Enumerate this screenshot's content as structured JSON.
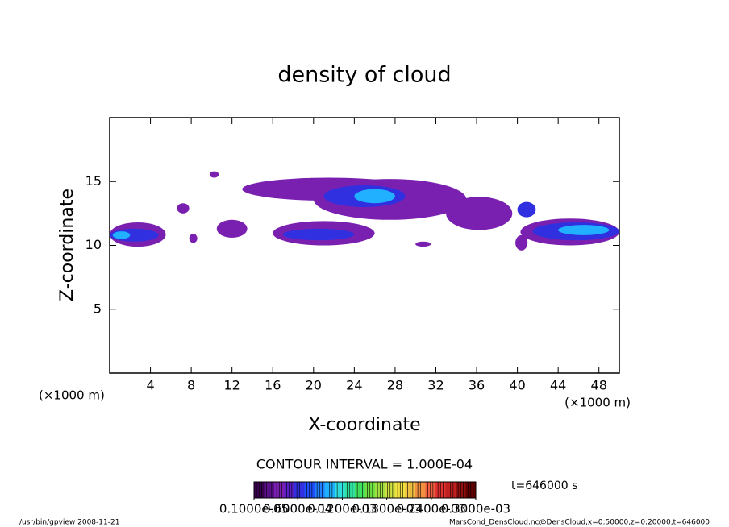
{
  "chart_data": {
    "type": "contour",
    "title": "density of cloud",
    "xlabel": "X-coordinate",
    "ylabel": "Z-coordinate",
    "xunit": "(×1000 m)",
    "xlim": [
      0,
      50
    ],
    "ylim": [
      0,
      20
    ],
    "xticks": [
      4,
      8,
      12,
      16,
      20,
      24,
      28,
      32,
      36,
      40,
      44,
      48
    ],
    "yticks": [
      5,
      10,
      15
    ],
    "contour_interval": "CONTOUR INTERVAL = 1.000E-04",
    "time_label": "t=646000 s",
    "footer_left": "/usr/bin/gpview  2008-11-21",
    "footer_right": "MarsCond_DensCloud.nc@DensCloud,x=0:50000,z=0:20000,t=646000",
    "colorbar": {
      "lim": [
        1e-06,
        0.0003
      ],
      "ticks": [
        {
          "value": 1e-06,
          "label": "0.1000e-05"
        },
        {
          "value": 6e-05,
          "label": "0.6000e-04"
        },
        {
          "value": 0.00012,
          "label": "0.1200e-03"
        },
        {
          "value": 0.00018,
          "label": "0.1800e-03"
        },
        {
          "value": 0.00024,
          "label": "0.2400e-03"
        },
        {
          "value": 0.0003,
          "label": "0.3000e-03"
        }
      ],
      "colors": [
        "#3a0050",
        "#5a108a",
        "#7a20b0",
        "#5a20c8",
        "#3030e0",
        "#2050ff",
        "#2080ff",
        "#20b0ff",
        "#30e0e0",
        "#30e0a0",
        "#40e060",
        "#70e040",
        "#a0e040",
        "#d0e040",
        "#f0e040",
        "#f0c040",
        "#f09040",
        "#f06040",
        "#e03030",
        "#c02020",
        "#901010",
        "#600000"
      ]
    },
    "patches": [
      {
        "x": [
          0,
          5.5
        ],
        "z": [
          9.9,
          11.8
        ],
        "value": 3e-05
      },
      {
        "x": [
          0,
          4.8
        ],
        "z": [
          10.3,
          11.3
        ],
        "value": 6.5e-05
      },
      {
        "x": [
          0.3,
          2
        ],
        "z": [
          10.5,
          11.1
        ],
        "value": 0.0001
      },
      {
        "x": [
          6.6,
          7.8
        ],
        "z": [
          12.5,
          13.3
        ],
        "value": 3e-05
      },
      {
        "x": [
          7.8,
          8.6
        ],
        "z": [
          10.2,
          10.9
        ],
        "value": 3e-05
      },
      {
        "x": [
          9.8,
          10.7
        ],
        "z": [
          15.3,
          15.8
        ],
        "value": 3e-05
      },
      {
        "x": [
          10.5,
          13.5
        ],
        "z": [
          10.6,
          12
        ],
        "value": 3e-05
      },
      {
        "x": [
          16,
          26
        ],
        "z": [
          10,
          11.9
        ],
        "value": 3e-05
      },
      {
        "x": [
          17,
          24
        ],
        "z": [
          10.4,
          11.3
        ],
        "value": 6.5e-05
      },
      {
        "x": [
          13,
          30
        ],
        "z": [
          13.5,
          15.3
        ],
        "value": 3e-05
      },
      {
        "x": [
          20,
          35
        ],
        "z": [
          12,
          15.2
        ],
        "value": 3e-05
      },
      {
        "x": [
          21,
          29
        ],
        "z": [
          13,
          14.7
        ],
        "value": 6.5e-05
      },
      {
        "x": [
          24,
          28
        ],
        "z": [
          13.3,
          14.4
        ],
        "value": 0.0001
      },
      {
        "x": [
          30,
          31.5
        ],
        "z": [
          9.9,
          10.3
        ],
        "value": 3e-05
      },
      {
        "x": [
          33,
          39.5
        ],
        "z": [
          11.2,
          13.8
        ],
        "value": 3e-05
      },
      {
        "x": [
          40,
          41.8
        ],
        "z": [
          12.2,
          13.4
        ],
        "value": 6.5e-05
      },
      {
        "x": [
          39.8,
          41
        ],
        "z": [
          9.6,
          10.8
        ],
        "value": 3e-05
      },
      {
        "x": [
          40.3,
          50
        ],
        "z": [
          10,
          12.1
        ],
        "value": 3e-05
      },
      {
        "x": [
          41.5,
          50
        ],
        "z": [
          10.4,
          11.8
        ],
        "value": 6.5e-05
      },
      {
        "x": [
          44,
          49
        ],
        "z": [
          10.8,
          11.6
        ],
        "value": 0.0001
      }
    ]
  }
}
